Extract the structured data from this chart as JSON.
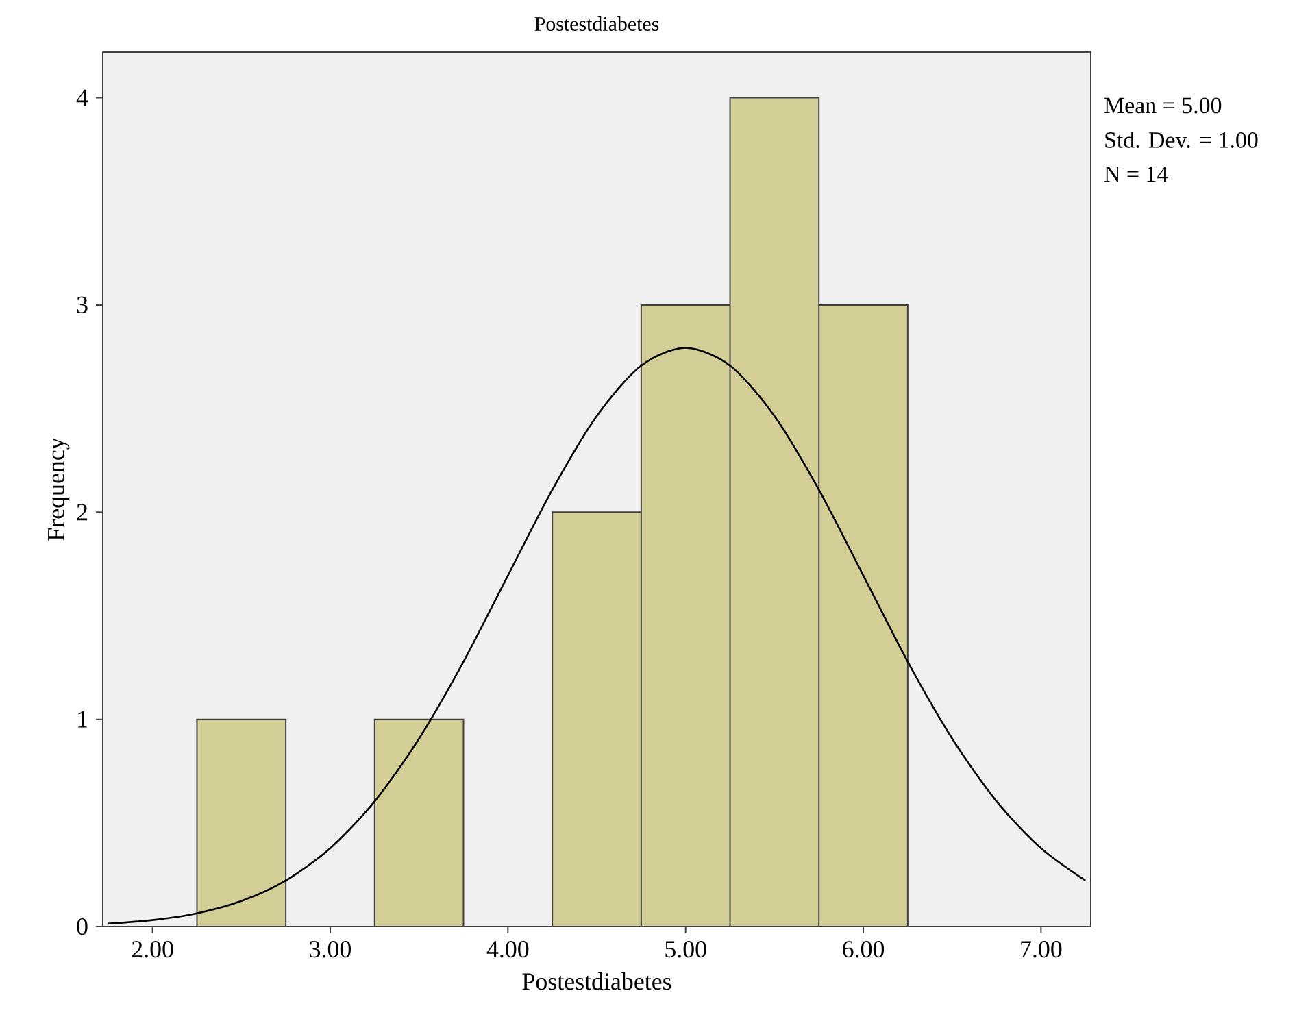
{
  "chart_data": {
    "type": "histogram",
    "title": "Postestdiabetes",
    "xlabel": "Postestdiabetes",
    "ylabel": "Frequency",
    "series": [
      {
        "color": "#d3ce96",
        "bins": [
          2.25,
          2.75,
          3.25,
          3.75,
          4.25,
          4.75,
          5.25,
          5.75,
          6.25
        ],
        "values": [
          1,
          0,
          1,
          0,
          2,
          3,
          4,
          3
        ]
      },
      {
        "type": "line",
        "color": "#000000",
        "x": [
          1.75,
          2.0,
          2.25,
          2.5,
          2.75,
          3.0,
          3.25,
          3.5,
          3.75,
          4.0,
          4.25,
          4.5,
          4.75,
          5.0,
          5.25,
          5.5,
          5.75,
          6.0,
          6.25,
          6.5,
          6.75,
          7.0,
          7.25
        ],
        "values": [
          0.014,
          0.031,
          0.064,
          0.123,
          0.222,
          0.378,
          0.604,
          0.907,
          1.278,
          1.694,
          2.108,
          2.464,
          2.707,
          2.793,
          2.707,
          2.464,
          2.108,
          1.694,
          1.278,
          0.907,
          0.604,
          0.378,
          0.222
        ]
      }
    ],
    "xlim": [
      1.72,
      7.28
    ],
    "ylim": [
      0,
      4.22
    ],
    "xticks": [
      {
        "value": 2,
        "label": "2.00"
      },
      {
        "value": 3,
        "label": "3.00"
      },
      {
        "value": 4,
        "label": "4.00"
      },
      {
        "value": 5,
        "label": "5.00"
      },
      {
        "value": 6,
        "label": "6.00"
      },
      {
        "value": 7,
        "label": "7.00"
      }
    ],
    "yticks": [
      0,
      1,
      2,
      3,
      4
    ],
    "grid": false,
    "annotations": [
      "Mean = 5.00",
      "Std. Dev. = 1.00",
      "N = 14"
    ]
  }
}
